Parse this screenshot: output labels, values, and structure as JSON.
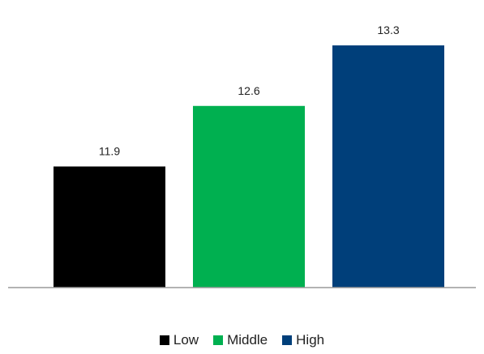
{
  "chart_data": {
    "type": "bar",
    "categories": [
      "Low",
      "Middle",
      "High"
    ],
    "values": [
      11.9,
      12.6,
      13.3
    ],
    "data_labels": [
      "11.9",
      "12.6",
      "13.3"
    ],
    "colors": [
      "#000000",
      "#00b050",
      "#003f7a"
    ],
    "title": "",
    "xlabel": "",
    "ylabel": "",
    "ylim": [
      10.5,
      13.6
    ],
    "grid": false,
    "legend": {
      "placement": "bottom",
      "items": [
        "Low",
        "Middle",
        "High"
      ]
    }
  }
}
